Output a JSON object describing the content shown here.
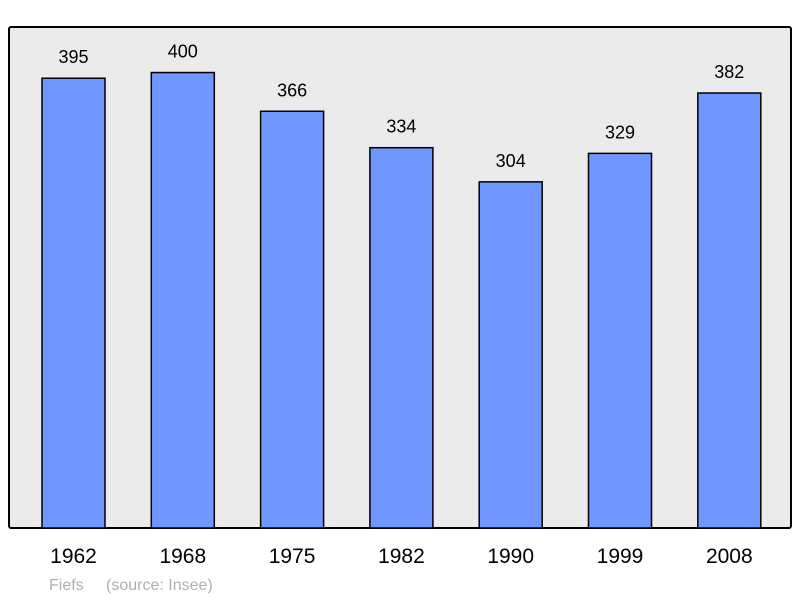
{
  "chart_data": {
    "type": "bar",
    "categories": [
      "1962",
      "1968",
      "1975",
      "1982",
      "1990",
      "1999",
      "2008"
    ],
    "values": [
      395,
      400,
      366,
      334,
      304,
      329,
      382
    ],
    "title": "",
    "xlabel": "",
    "ylabel": "",
    "ylim": [
      0,
      440
    ],
    "grid": false,
    "data_labels": true,
    "colors": {
      "bar": "#7096ff",
      "plot_background": "#ebebeb",
      "border": "#000000"
    }
  },
  "footer": {
    "place": "Fiefs",
    "source": "(source: Insee)"
  }
}
